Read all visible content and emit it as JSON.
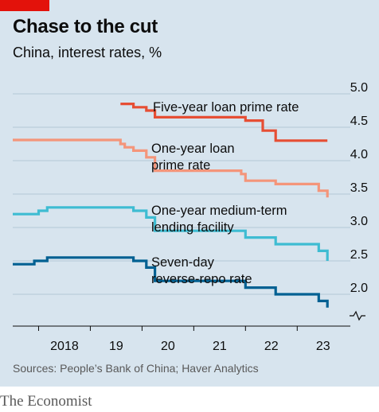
{
  "header": {
    "title": "Chase to the cut",
    "subtitle": "China, interest rates, %"
  },
  "footer": {
    "source": "Sources: People’s Bank of China; Haver Analytics",
    "brand": "The Economist"
  },
  "chart_data": {
    "type": "line",
    "title": "Chase to the cut",
    "subtitle": "China, interest rates, %",
    "xlabel": "",
    "ylabel": "",
    "x_ticks": [
      "2018",
      "19",
      "20",
      "21",
      "22",
      "23"
    ],
    "y_ticks": [
      "5.0",
      "4.5",
      "4.0",
      "3.5",
      "3.0",
      "2.5",
      "2.0"
    ],
    "ylim": [
      1.8,
      5.0
    ],
    "xlim": [
      "2017-07",
      "2023-10"
    ],
    "y_axis_break": true,
    "grid": true,
    "legend": "direct labels",
    "series": [
      {
        "name": "Five-year loan prime rate",
        "label_lines": [
          "Five-year loan prime rate"
        ],
        "color": "#e64e34",
        "points": [
          [
            "2019-08",
            4.85
          ],
          [
            "2019-11",
            4.8
          ],
          [
            "2020-02",
            4.75
          ],
          [
            "2020-04",
            4.65
          ],
          [
            "2022-01",
            4.6
          ],
          [
            "2022-05",
            4.45
          ],
          [
            "2022-08",
            4.3
          ],
          [
            "2023-08",
            4.3
          ]
        ]
      },
      {
        "name": "One-year loan prime rate",
        "label_lines": [
          "One-year loan",
          "prime rate"
        ],
        "color": "#f4957a",
        "points": [
          [
            "2017-07",
            4.31
          ],
          [
            "2019-08",
            4.25
          ],
          [
            "2019-09",
            4.2
          ],
          [
            "2019-11",
            4.15
          ],
          [
            "2020-02",
            4.05
          ],
          [
            "2020-04",
            3.85
          ],
          [
            "2021-12",
            3.8
          ],
          [
            "2022-01",
            3.7
          ],
          [
            "2022-08",
            3.65
          ],
          [
            "2023-06",
            3.55
          ],
          [
            "2023-08",
            3.45
          ]
        ]
      },
      {
        "name": "One-year medium-term lending facility",
        "label_lines": [
          "One-year medium-term",
          "lending facility"
        ],
        "color": "#3ebcd2",
        "points": [
          [
            "2017-07",
            3.2
          ],
          [
            "2018-01",
            3.25
          ],
          [
            "2018-03",
            3.3
          ],
          [
            "2019-11",
            3.25
          ],
          [
            "2020-02",
            3.15
          ],
          [
            "2020-04",
            2.95
          ],
          [
            "2022-01",
            2.85
          ],
          [
            "2022-08",
            2.75
          ],
          [
            "2023-06",
            2.65
          ],
          [
            "2023-08",
            2.5
          ]
        ]
      },
      {
        "name": "Seven-day reverse-repo rate",
        "label_lines": [
          "Seven-day",
          "reverse-repo rate"
        ],
        "color": "#006092",
        "points": [
          [
            "2017-07",
            2.45
          ],
          [
            "2017-12",
            2.5
          ],
          [
            "2018-03",
            2.55
          ],
          [
            "2019-11",
            2.5
          ],
          [
            "2020-02",
            2.4
          ],
          [
            "2020-04",
            2.2
          ],
          [
            "2022-01",
            2.1
          ],
          [
            "2022-08",
            2.0
          ],
          [
            "2023-06",
            1.9
          ],
          [
            "2023-08",
            1.8
          ]
        ]
      }
    ]
  }
}
